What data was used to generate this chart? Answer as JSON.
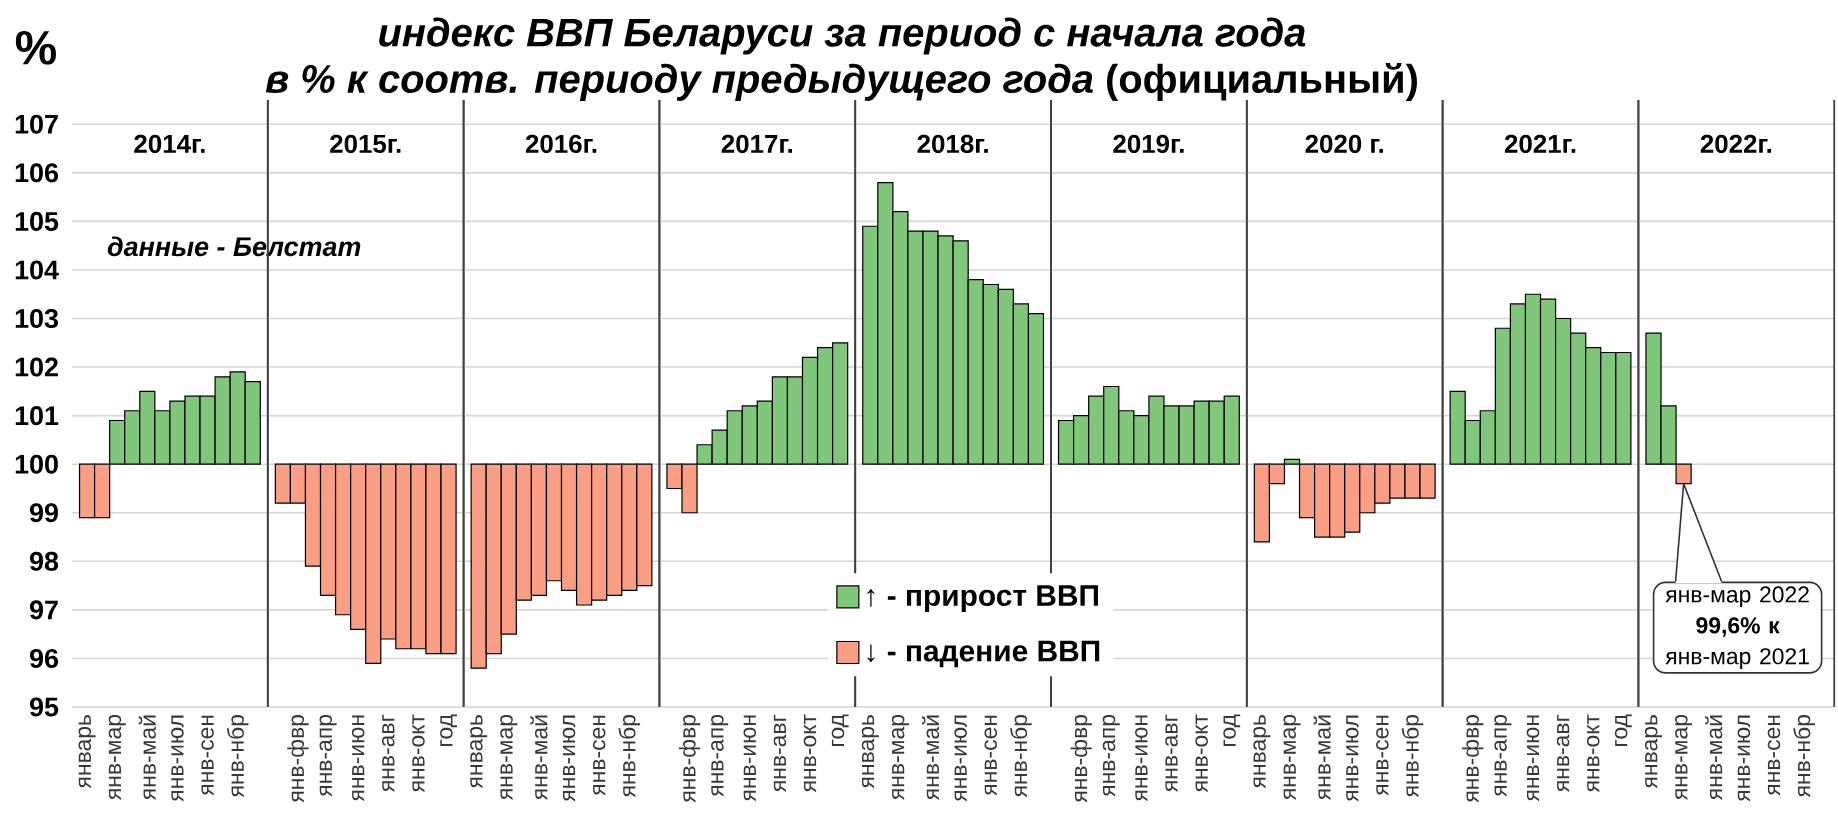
{
  "chart_data": [
    {
      "type": "other",
      "title": "индекс ВВП Беларуси за период с начала года",
      "subtitle": "*в % к соотв. периоду предыдущего года* (официальный)"
    },
    {
      "type": "bar",
      "title": "2014г.",
      "ylabel": "%",
      "annotations": [
        "данные - Белстат"
      ],
      "categories": [
        "январь",
        null,
        "янв-мар",
        null,
        "янв-май",
        null,
        "янв-июл",
        null,
        "янв-сен",
        null,
        "янв-нбр",
        null
      ],
      "stacked": true,
      "series": [
        {
          "color": "#80c77b",
          "base": [
            null,
            null,
            100,
            100,
            100,
            100,
            100,
            100,
            100,
            100,
            100,
            100
          ],
          "values": [
            null,
            null,
            0.9,
            1.1,
            1.5,
            1.1,
            1.3,
            1.4,
            1.4,
            1.8,
            1.9,
            1.7
          ]
        },
        {
          "color": "#fa9e84",
          "base": [
            100,
            100,
            null,
            null,
            null,
            null,
            null,
            null,
            null,
            null,
            null,
            null
          ],
          "values": [
            -1.1,
            -1.1,
            null,
            null,
            null,
            null,
            null,
            null,
            null,
            null,
            null,
            null
          ]
        }
      ],
      "ylim": [
        95,
        107.5
      ],
      "yticks": [
        95,
        96,
        97,
        98,
        99,
        100,
        101,
        102,
        103,
        104,
        105,
        106,
        107
      ],
      "grid": "y"
    },
    {
      "type": "bar",
      "title": "2015г.",
      "categories": [
        null,
        "янв-фвр",
        null,
        "янв-апр",
        null,
        "янв-июн",
        null,
        "янв-авг",
        null,
        "янв-окт",
        null,
        "год"
      ],
      "series": [
        {
          "color": "#fa9e84",
          "base": [
            100,
            100,
            100,
            100,
            100,
            100,
            100,
            100,
            100,
            100,
            100,
            100
          ],
          "values": [
            -0.8,
            -0.8,
            -2.1,
            -2.7,
            -3.1,
            -3.4,
            -4.1,
            -3.6,
            -3.8,
            -3.8,
            -3.9,
            -3.9
          ]
        }
      ],
      "ylim": [
        95,
        107.5
      ],
      "yticks": [
        95,
        96,
        97,
        98,
        99,
        100,
        101,
        102,
        103,
        104,
        105,
        106,
        107
      ],
      "grid": "y",
      "tick_labels": "x"
    },
    {
      "type": "bar",
      "title": "2016г.",
      "categories": [
        "январь",
        null,
        "янв-мар",
        null,
        "янв-май",
        null,
        "янв-июл",
        null,
        "янв-сен",
        null,
        "янв-нбр",
        null
      ],
      "series": [
        {
          "color": "#fa9e84",
          "base": [
            100,
            100,
            100,
            100,
            100,
            100,
            100,
            100,
            100,
            100,
            100,
            100
          ],
          "values": [
            -4.2,
            -3.9,
            -3.5,
            -2.8,
            -2.7,
            -2.4,
            -2.6,
            -2.9,
            -2.8,
            -2.7,
            -2.6,
            -2.5
          ]
        }
      ],
      "ylim": [
        95,
        107.5
      ],
      "yticks": [
        95,
        96,
        97,
        98,
        99,
        100,
        101,
        102,
        103,
        104,
        105,
        106,
        107
      ],
      "grid": "y",
      "tick_labels": "x"
    },
    {
      "type": "bar",
      "title": "2017г.",
      "categories": [
        null,
        "янв-фвр",
        null,
        "янв-апр",
        null,
        "янв-июн",
        null,
        "янв-авг",
        null,
        "янв-окт",
        null,
        "год"
      ],
      "stacked": true,
      "series": [
        {
          "color": "#80c77b",
          "base": [
            null,
            null,
            100,
            100,
            100,
            100,
            100,
            100,
            100,
            100,
            100,
            100
          ],
          "values": [
            null,
            null,
            0.4,
            0.7,
            1.1,
            1.2,
            1.3,
            1.8,
            1.8,
            2.2,
            2.4,
            2.5
          ]
        },
        {
          "color": "#fa9e84",
          "base": [
            100,
            100,
            null,
            null,
            null,
            null,
            null,
            null,
            null,
            null,
            null,
            null
          ],
          "values": [
            -0.5,
            -1.0,
            null,
            null,
            null,
            null,
            null,
            null,
            null,
            null,
            null,
            null
          ]
        }
      ],
      "ylim": [
        95,
        107.5
      ],
      "yticks": [
        95,
        96,
        97,
        98,
        99,
        100,
        101,
        102,
        103,
        104,
        105,
        106,
        107
      ],
      "grid": "y",
      "tick_labels": "x"
    },
    {
      "type": "bar",
      "title": "2018г.",
      "categories": [
        "январь",
        null,
        "янв-мар",
        null,
        "янв-май",
        null,
        "янв-июл",
        null,
        "янв-сен",
        null,
        "янв-нбр",
        null
      ],
      "stacked": true,
      "series": [
        {
          "name": "↑ **- прирост ВВП**",
          "color": "#80c77b",
          "base": [
            100,
            100,
            100,
            100,
            100,
            100,
            100,
            100,
            100,
            100,
            100,
            100
          ],
          "values": [
            4.9,
            5.8,
            5.2,
            4.8,
            4.8,
            4.7,
            4.6,
            3.8,
            3.7,
            3.6,
            3.3,
            3.1
          ]
        },
        {
          "name": "↓ **- падение ВВП**",
          "color": "#fa9e84",
          "values": [
            null,
            null,
            null,
            null,
            null,
            null,
            null,
            null,
            null,
            null,
            null,
            null
          ]
        }
      ],
      "legend": "bottom",
      "ylim": [
        95,
        107.5
      ],
      "yticks": [
        95,
        96,
        97,
        98,
        99,
        100,
        101,
        102,
        103,
        104,
        105,
        106,
        107
      ],
      "grid": "y",
      "tick_labels": "x"
    },
    {
      "type": "bar",
      "title": "2019г.",
      "categories": [
        null,
        "янв-фвр",
        null,
        "янв-апр",
        null,
        "янв-июн",
        null,
        "янв-авг",
        null,
        "янв-окт",
        null,
        "год"
      ],
      "series": [
        {
          "color": "#80c77b",
          "base": [
            100,
            100,
            100,
            100,
            100,
            100,
            100,
            100,
            100,
            100,
            100,
            100
          ],
          "values": [
            0.9,
            1.0,
            1.4,
            1.6,
            1.1,
            1.0,
            1.4,
            1.2,
            1.2,
            1.3,
            1.3,
            1.4
          ]
        }
      ],
      "ylim": [
        95,
        107.5
      ],
      "yticks": [
        95,
        96,
        97,
        98,
        99,
        100,
        101,
        102,
        103,
        104,
        105,
        106,
        107
      ],
      "grid": "y",
      "tick_labels": "x"
    },
    {
      "type": "bar",
      "title": "2020 г.",
      "categories": [
        "январь",
        null,
        "янв-мар",
        null,
        "янв-май",
        null,
        "янв-июл",
        null,
        "янв-сен",
        null,
        "янв-нбр",
        null
      ],
      "stacked": true,
      "series": [
        {
          "color": "#80c77b",
          "base": [
            null,
            null,
            100,
            null,
            null,
            null,
            null,
            null,
            null,
            null,
            null,
            null
          ],
          "values": [
            null,
            null,
            0.1,
            null,
            null,
            null,
            null,
            null,
            null,
            null,
            null,
            null
          ]
        },
        {
          "color": "#fa9e84",
          "base": [
            100,
            100,
            null,
            100,
            100,
            100,
            100,
            100,
            100,
            100,
            100,
            100
          ],
          "values": [
            -1.6,
            -0.4,
            null,
            -1.1,
            -1.5,
            -1.5,
            -1.4,
            -1.0,
            -0.8,
            -0.7,
            -0.7,
            -0.7
          ]
        }
      ],
      "ylim": [
        95,
        107.5
      ],
      "yticks": [
        95,
        96,
        97,
        98,
        99,
        100,
        101,
        102,
        103,
        104,
        105,
        106,
        107
      ],
      "grid": "y",
      "tick_labels": "x"
    },
    {
      "type": "bar",
      "title": "2021г.",
      "categories": [
        null,
        "янв-фвр",
        null,
        "янв-апр",
        null,
        "янв-июн",
        null,
        "янв-авг",
        null,
        "янв-окт",
        null,
        "год"
      ],
      "series": [
        {
          "color": "#80c77b",
          "base": [
            100,
            100,
            100,
            100,
            100,
            100,
            100,
            100,
            100,
            100,
            100,
            100
          ],
          "values": [
            1.5,
            0.9,
            1.1,
            2.8,
            3.3,
            3.5,
            3.4,
            3.0,
            2.7,
            2.4,
            2.3,
            2.3
          ]
        }
      ],
      "ylim": [
        95,
        107.5
      ],
      "yticks": [
        95,
        96,
        97,
        98,
        99,
        100,
        101,
        102,
        103,
        104,
        105,
        106,
        107
      ],
      "grid": "y",
      "tick_labels": "x"
    },
    {
      "type": "bar",
      "title": "2022г.",
      "annotations": [
        {
          "text": "янв-мар 2022\n**99,6% к**\nянв-мар 2021",
          "x": "янв-мар",
          "y": 99.6
        }
      ],
      "categories": [
        "январь",
        null,
        "янв-мар",
        null,
        "янв-май",
        null,
        "янв-июл",
        null,
        "янв-сен",
        null,
        "янв-нбр",
        null
      ],
      "stacked": true,
      "series": [
        {
          "color": "#80c77b",
          "base": [
            100,
            100,
            null,
            null,
            null,
            null,
            null,
            null,
            null,
            null,
            null,
            null
          ],
          "values": [
            2.7,
            1.2,
            null,
            null,
            null,
            null,
            null,
            null,
            null,
            null,
            null,
            null
          ]
        },
        {
          "color": "#fa9e84",
          "base": [
            null,
            null,
            100,
            null,
            null,
            null,
            null,
            null,
            null,
            null,
            null,
            null
          ],
          "values": [
            null,
            null,
            -0.4,
            null,
            null,
            null,
            null,
            null,
            null,
            null,
            null,
            null
          ]
        }
      ],
      "ylim": [
        95,
        107.5
      ],
      "yticks": [
        95,
        96,
        97,
        98,
        99,
        100,
        101,
        102,
        103,
        104,
        105,
        106,
        107
      ],
      "grid": "y",
      "tick_labels": "x"
    }
  ]
}
